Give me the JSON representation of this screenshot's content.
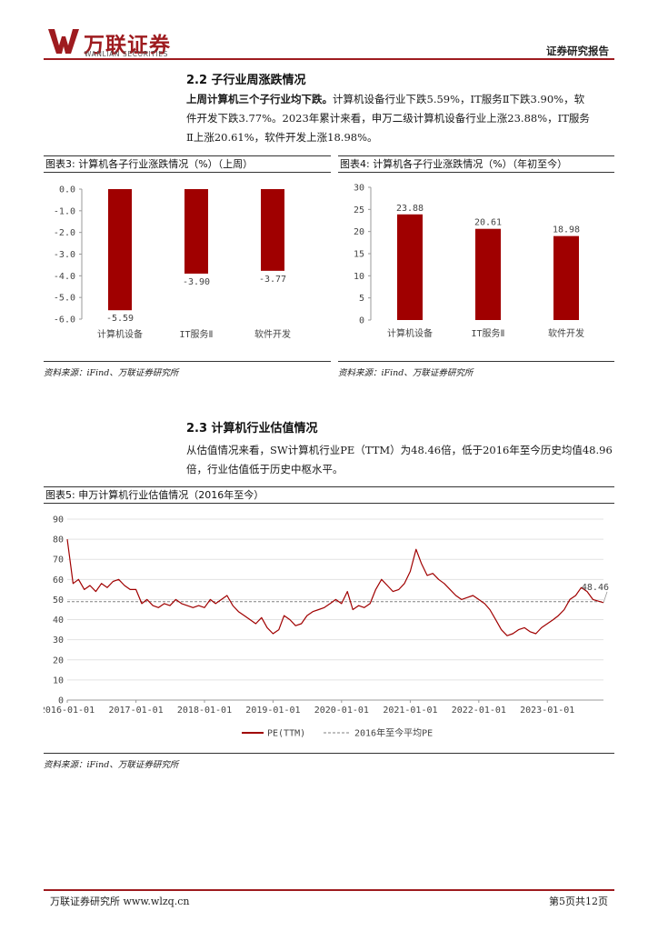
{
  "header": {
    "logo_cn": "万联证券",
    "logo_en": "WANLIAN SECURITIES",
    "doc_type": "证券研究报告",
    "brand_color": "#9e1b1f"
  },
  "section_2_2": {
    "title": "2.2  子行业周涨跌情况",
    "para_bold": "上周计算机三个子行业均下跌。",
    "para_line1": "计算机设备行业下跌5.59%，IT服务Ⅱ下跌3.90%，软",
    "para_line2": "件开发下跌3.77%。2023年累计来看，申万二级计算机设备行业上涨23.88%，IT服务",
    "para_line3": "Ⅱ上涨20.61%，软件开发上涨18.98%。"
  },
  "figure3": {
    "title": "图表3:  计算机各子行业涨跌情况（%）（上周）",
    "source": "资料来源：iFind、万联证券研究所"
  },
  "figure4": {
    "title": "图表4:  计算机各子行业涨跌情况（%）（年初至今）",
    "source": "资料来源：iFind、万联证券研究所"
  },
  "section_2_3": {
    "title": "2.3  计算机行业估值情况",
    "para_line1": "从估值情况来看，SW计算机行业PE（TTM）为48.46倍，低于2016年至今历史均值48.96",
    "para_line2": "倍，行业估值低于历史中枢水平。"
  },
  "figure5": {
    "title": "图表5:  申万计算机行业估值情况（2016年至今）",
    "source": "资料来源：iFind、万联证券研究所"
  },
  "footer": {
    "left": "万联证券研究所 www.wlzq.cn",
    "right": "第5页共12页"
  },
  "chart_data": [
    {
      "type": "bar",
      "categories": [
        "计算机设备",
        "IT服务Ⅱ",
        "软件开发"
      ],
      "values": [
        -5.59,
        -3.9,
        -3.77
      ],
      "value_labels": [
        "-5.59",
        "-3.90",
        "-3.77"
      ],
      "ylim": [
        -6.0,
        0.0
      ],
      "yticks": [
        "0.0",
        "-1.0",
        "-2.0",
        "-3.0",
        "-4.0",
        "-5.0",
        "-6.0"
      ],
      "ytick_values": [
        0,
        -1,
        -2,
        -3,
        -4,
        -5,
        -6
      ],
      "color": "#a00000",
      "grid": false
    },
    {
      "type": "bar",
      "categories": [
        "计算机设备",
        "IT服务Ⅱ",
        "软件开发"
      ],
      "values": [
        23.88,
        20.61,
        18.98
      ],
      "value_labels": [
        "23.88",
        "20.61",
        "18.98"
      ],
      "ylim": [
        0,
        30
      ],
      "yticks": [
        "0",
        "5",
        "10",
        "15",
        "20",
        "25",
        "30"
      ],
      "ytick_values": [
        0,
        5,
        10,
        15,
        20,
        25,
        30
      ],
      "color": "#a00000",
      "grid": false
    },
    {
      "type": "line",
      "ylim": [
        0,
        90
      ],
      "yticks": [
        "0",
        "10",
        "20",
        "30",
        "40",
        "50",
        "60",
        "70",
        "80",
        "90"
      ],
      "ytick_values": [
        0,
        10,
        20,
        30,
        40,
        50,
        60,
        70,
        80,
        90
      ],
      "xlim": [
        "2016-01-01",
        "2023-10-27"
      ],
      "xticks": [
        "2016-01-01",
        "2017-01-01",
        "2018-01-01",
        "2019-01-01",
        "2020-01-01",
        "2021-01-01",
        "2022-01-01",
        "2023-01-01"
      ],
      "end_label": "48.46",
      "grid": true,
      "legend_position": "bottom",
      "series": [
        {
          "name": "PE(TTM)",
          "color": "#a00000",
          "x": [
            "2016-01-01",
            "2016-02-01",
            "2016-03-01",
            "2016-04-01",
            "2016-05-01",
            "2016-06-01",
            "2016-07-01",
            "2016-08-01",
            "2016-09-01",
            "2016-10-01",
            "2016-11-01",
            "2016-12-01",
            "2017-01-01",
            "2017-02-01",
            "2017-03-01",
            "2017-04-01",
            "2017-05-01",
            "2017-06-01",
            "2017-07-01",
            "2017-08-01",
            "2017-09-01",
            "2017-10-01",
            "2017-11-01",
            "2017-12-01",
            "2018-01-01",
            "2018-02-01",
            "2018-03-01",
            "2018-04-01",
            "2018-05-01",
            "2018-06-01",
            "2018-07-01",
            "2018-08-01",
            "2018-09-01",
            "2018-10-01",
            "2018-11-01",
            "2018-12-01",
            "2019-01-01",
            "2019-02-01",
            "2019-03-01",
            "2019-04-01",
            "2019-05-01",
            "2019-06-01",
            "2019-07-01",
            "2019-08-01",
            "2019-09-01",
            "2019-10-01",
            "2019-11-01",
            "2019-12-01",
            "2020-01-01",
            "2020-02-01",
            "2020-03-01",
            "2020-04-01",
            "2020-05-01",
            "2020-06-01",
            "2020-07-01",
            "2020-08-01",
            "2020-09-01",
            "2020-10-01",
            "2020-11-01",
            "2020-12-01",
            "2021-01-01",
            "2021-02-01",
            "2021-03-01",
            "2021-04-01",
            "2021-05-01",
            "2021-06-01",
            "2021-07-01",
            "2021-08-01",
            "2021-09-01",
            "2021-10-01",
            "2021-11-01",
            "2021-12-01",
            "2022-01-01",
            "2022-02-01",
            "2022-03-01",
            "2022-04-01",
            "2022-05-01",
            "2022-06-01",
            "2022-07-01",
            "2022-08-01",
            "2022-09-01",
            "2022-10-01",
            "2022-11-01",
            "2022-12-01",
            "2023-01-01",
            "2023-02-01",
            "2023-03-01",
            "2023-04-01",
            "2023-05-01",
            "2023-06-01",
            "2023-07-01",
            "2023-08-01",
            "2023-09-01",
            "2023-10-27"
          ],
          "values": [
            80,
            58,
            60,
            55,
            57,
            54,
            58,
            56,
            59,
            60,
            57,
            55,
            55,
            48,
            50,
            47,
            46,
            48,
            47,
            50,
            48,
            47,
            46,
            47,
            46,
            50,
            48,
            50,
            52,
            47,
            44,
            42,
            40,
            38,
            41,
            36,
            33,
            35,
            42,
            40,
            37,
            38,
            42,
            44,
            45,
            46,
            48,
            50,
            48,
            54,
            45,
            47,
            46,
            48,
            55,
            60,
            57,
            54,
            55,
            58,
            64,
            75,
            68,
            62,
            63,
            60,
            58,
            55,
            52,
            50,
            51,
            52,
            50,
            48,
            45,
            40,
            35,
            32,
            33,
            35,
            36,
            34,
            33,
            36,
            38,
            40,
            42,
            45,
            50,
            52,
            56,
            54,
            50,
            48.46
          ]
        },
        {
          "name": "2016年至今平均PE",
          "color": "#808080",
          "style": "dashed",
          "value": 48.96
        }
      ]
    }
  ]
}
